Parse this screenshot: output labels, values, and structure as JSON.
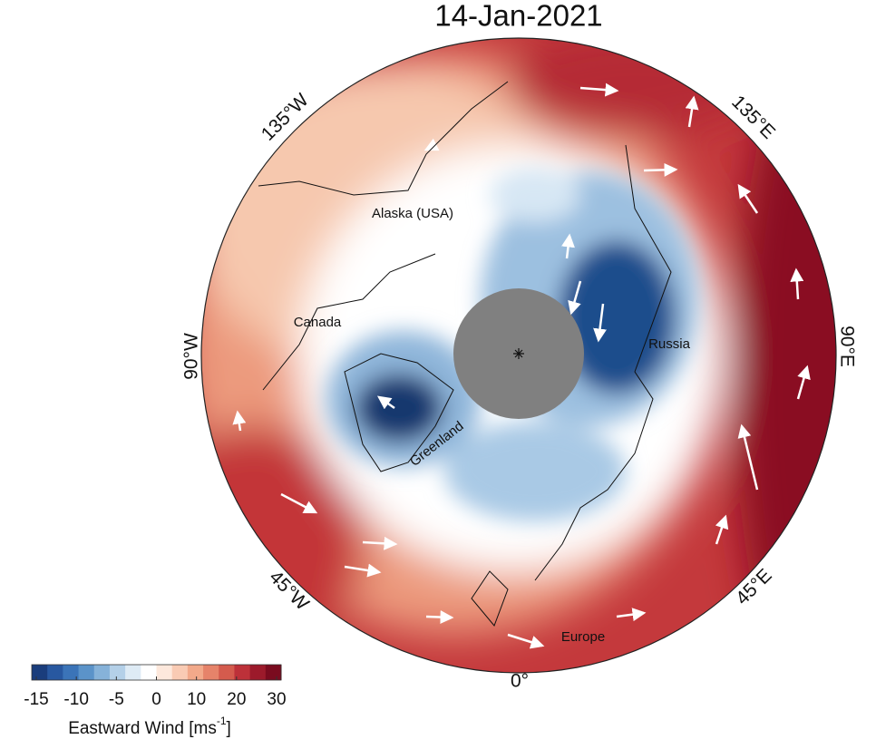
{
  "title": "14-Jan-2021",
  "map": {
    "longitude_labels": [
      "135°W",
      "135°E",
      "90°W",
      "90°E",
      "45°W",
      "45°E",
      "0°"
    ],
    "region_labels": [
      "Alaska (USA)",
      "Canada",
      "Russia",
      "Greenland",
      "Europe"
    ]
  },
  "colorbar": {
    "ticks": [
      -15,
      -10,
      -5,
      0,
      10,
      20,
      30
    ],
    "label_prefix": "Eastward Wind [ms",
    "label_exponent": "-1",
    "label_suffix": "]",
    "colors": [
      "#1a3d7c",
      "#2858a0",
      "#3b74b8",
      "#5b93c9",
      "#86b2d9",
      "#b4d0e8",
      "#deebf5",
      "#ffffff",
      "#fde8dc",
      "#f9cbb4",
      "#f2a98a",
      "#e6836a",
      "#d45b4d",
      "#bd3139",
      "#9c1a2b",
      "#7a0b1f"
    ]
  }
}
